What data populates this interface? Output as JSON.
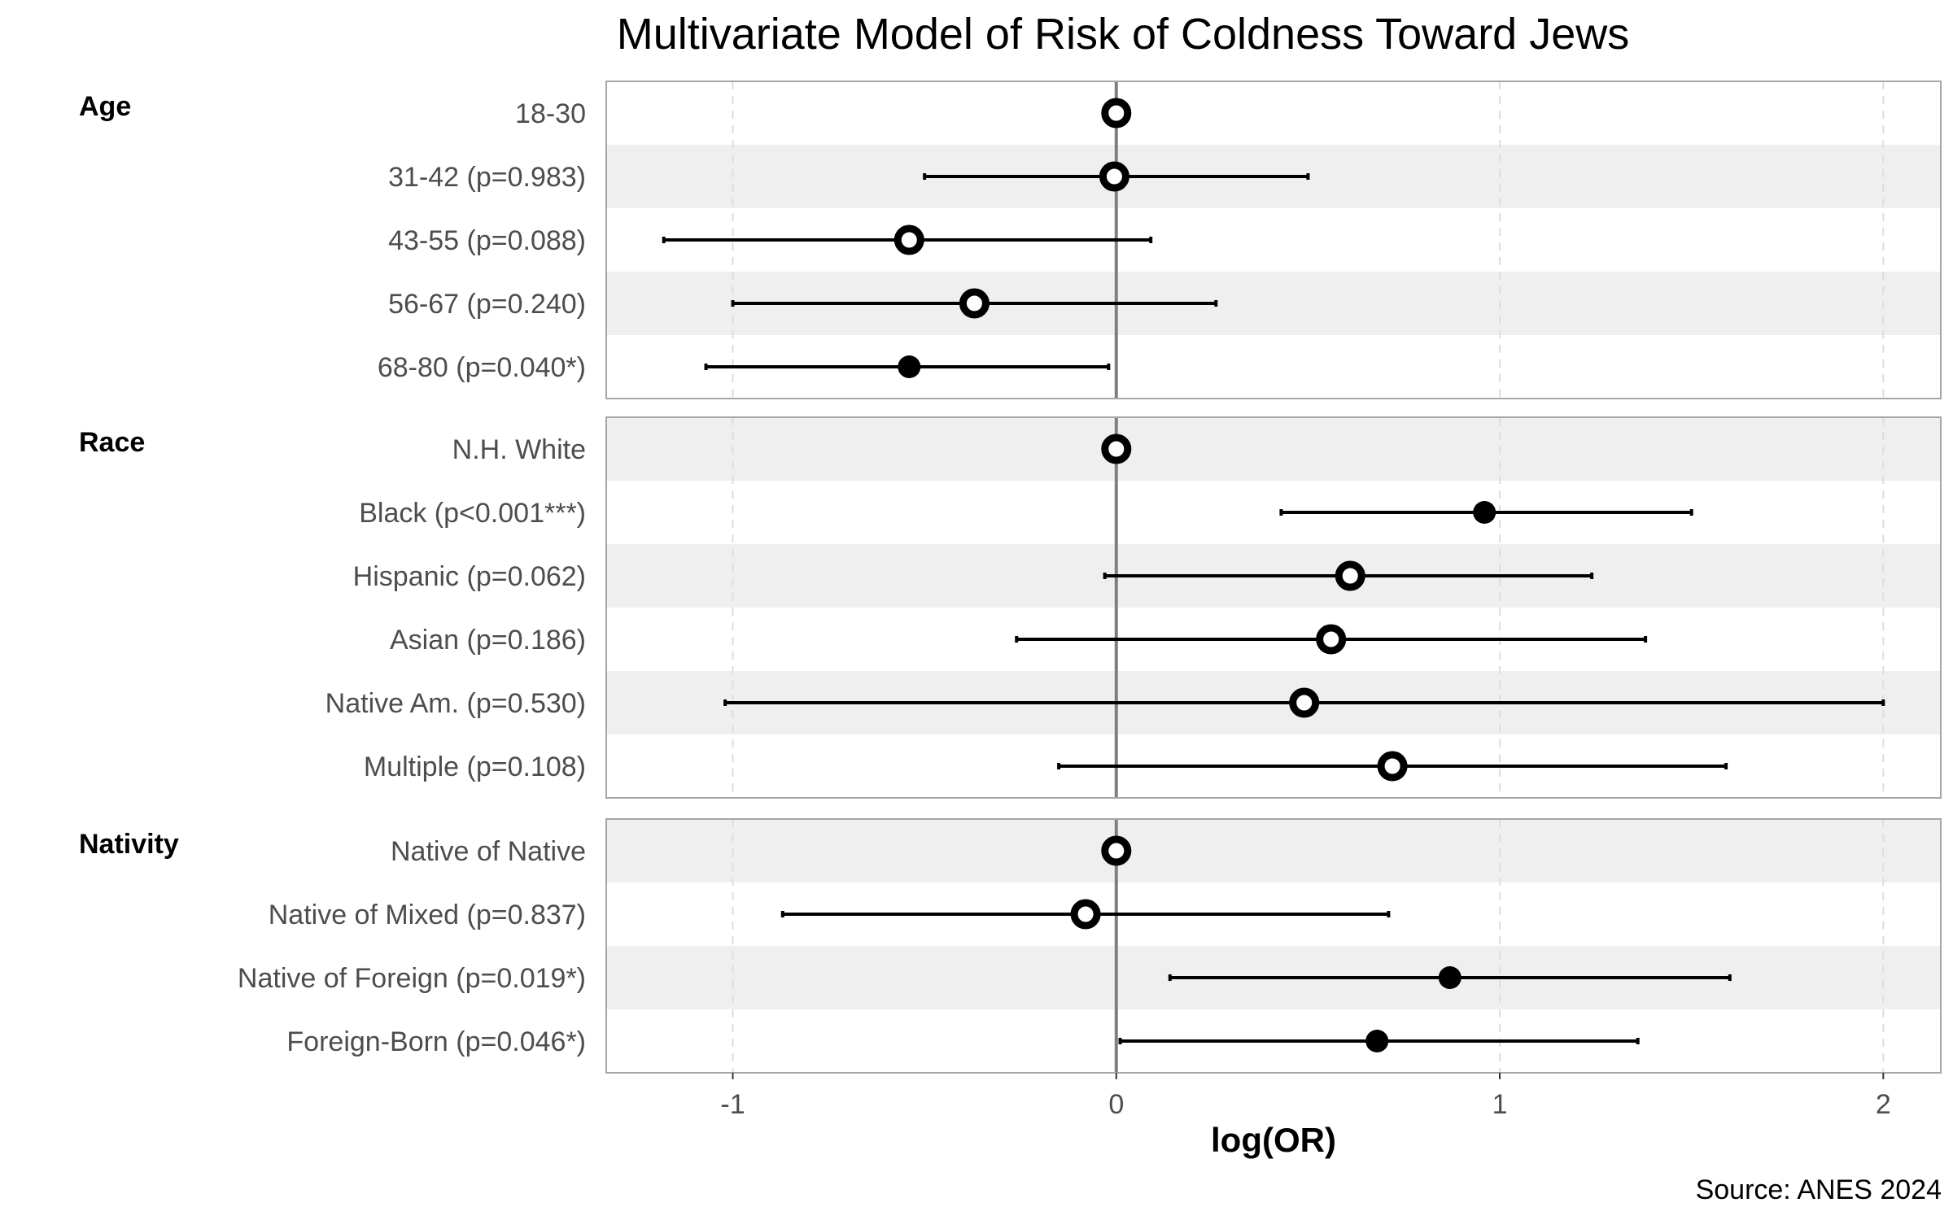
{
  "chart_data": {
    "type": "forest",
    "title": "Multivariate Model of Risk of Coldness Toward Jews",
    "xlabel": "log(OR)",
    "caption": "Source: ANES 2024",
    "xlim": [
      -1.33,
      2.15
    ],
    "x_ticks": [
      {
        "value": -1,
        "label": "-1"
      },
      {
        "value": 0,
        "label": "0"
      },
      {
        "value": 1,
        "label": "1"
      },
      {
        "value": 2,
        "label": "2"
      }
    ],
    "reference_line": 0,
    "colors": {
      "point": "#000000",
      "ci_line": "#000000",
      "reference": "#7f7f7f",
      "grid": "#dddddd",
      "band": "#efefef",
      "panel_border": "#a6a6a6"
    },
    "legend_note": "hollow markers: not significant / reference; filled markers: p < 0.05",
    "groups": [
      {
        "name": "Age",
        "rows": [
          {
            "label": "18-30",
            "estimate": 0.0,
            "lower": null,
            "upper": null,
            "significant": false
          },
          {
            "label": "31-42 (p=0.983)",
            "estimate": -0.005,
            "lower": -0.5,
            "upper": 0.5,
            "significant": false
          },
          {
            "label": "43-55 (p=0.088)",
            "estimate": -0.54,
            "lower": -1.18,
            "upper": 0.09,
            "significant": false
          },
          {
            "label": "56-67 (p=0.240)",
            "estimate": -0.37,
            "lower": -1.0,
            "upper": 0.26,
            "significant": false
          },
          {
            "label": "68-80 (p=0.040*)",
            "estimate": -0.54,
            "lower": -1.07,
            "upper": -0.02,
            "significant": true
          }
        ]
      },
      {
        "name": "Race",
        "rows": [
          {
            "label": "N.H. White",
            "estimate": 0.0,
            "lower": null,
            "upper": null,
            "significant": false
          },
          {
            "label": "Black (p<0.001***)",
            "estimate": 0.96,
            "lower": 0.43,
            "upper": 1.5,
            "significant": true
          },
          {
            "label": "Hispanic (p=0.062)",
            "estimate": 0.61,
            "lower": -0.03,
            "upper": 1.24,
            "significant": false
          },
          {
            "label": "Asian (p=0.186)",
            "estimate": 0.56,
            "lower": -0.26,
            "upper": 1.38,
            "significant": false
          },
          {
            "label": "Native Am. (p=0.530)",
            "estimate": 0.49,
            "lower": -1.02,
            "upper": 2.0,
            "significant": false
          },
          {
            "label": "Multiple (p=0.108)",
            "estimate": 0.72,
            "lower": -0.15,
            "upper": 1.59,
            "significant": false
          }
        ]
      },
      {
        "name": "Nativity",
        "rows": [
          {
            "label": "Native of Native",
            "estimate": 0.0,
            "lower": null,
            "upper": null,
            "significant": false
          },
          {
            "label": "Native of Mixed (p=0.837)",
            "estimate": -0.08,
            "lower": -0.87,
            "upper": 0.71,
            "significant": false
          },
          {
            "label": "Native of Foreign (p=0.019*)",
            "estimate": 0.87,
            "lower": 0.14,
            "upper": 1.6,
            "significant": true
          },
          {
            "label": "Foreign-Born (p=0.046*)",
            "estimate": 0.68,
            "lower": 0.01,
            "upper": 1.36,
            "significant": true
          }
        ]
      }
    ]
  }
}
